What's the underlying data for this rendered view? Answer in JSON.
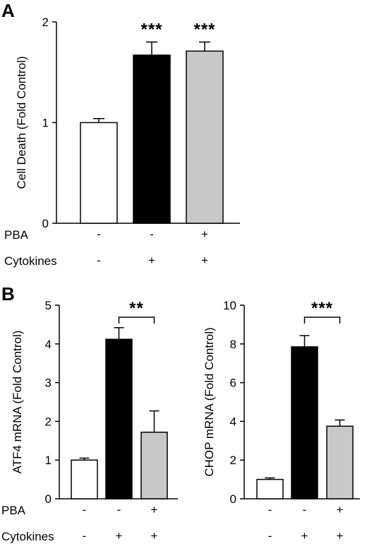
{
  "panels": {
    "A": "A",
    "B": "B"
  },
  "row_labels": {
    "pba": "PBA",
    "cytokines": "Cytokines"
  },
  "chart_data": [
    {
      "type": "bar",
      "panel": "A",
      "ylabel": "Cell Death (Fold Control)",
      "ylim": [
        0,
        2
      ],
      "yticks": [
        0,
        1,
        2
      ],
      "values": [
        1.0,
        1.67,
        1.71
      ],
      "errors": [
        0.04,
        0.13,
        0.09
      ],
      "colors": [
        "#ffffff",
        "#000000",
        "#c8c8c8"
      ],
      "pba": [
        "-",
        "-",
        "+"
      ],
      "cytokines": [
        "-",
        "+",
        "+"
      ],
      "significance": [
        "",
        "***",
        "***"
      ],
      "bracket": null
    },
    {
      "type": "bar",
      "panel": "B",
      "ylabel": "ATF4 mRNA (Fold Control)",
      "ylim": [
        0,
        5
      ],
      "yticks": [
        0,
        1,
        2,
        3,
        4,
        5
      ],
      "values": [
        1.0,
        4.12,
        1.72
      ],
      "errors": [
        0.05,
        0.3,
        0.55
      ],
      "colors": [
        "#ffffff",
        "#000000",
        "#c8c8c8"
      ],
      "pba": [
        "-",
        "-",
        "+"
      ],
      "cytokines": [
        "-",
        "+",
        "+"
      ],
      "significance": [
        "",
        "",
        ""
      ],
      "bracket": {
        "from": 1,
        "to": 2,
        "label": "**"
      }
    },
    {
      "type": "bar",
      "panel": "B",
      "ylabel": "CHOP mRNA (Fold Control)",
      "ylim": [
        0,
        10
      ],
      "yticks": [
        0,
        2,
        4,
        6,
        8,
        10
      ],
      "values": [
        1.0,
        7.85,
        3.75
      ],
      "errors": [
        0.08,
        0.58,
        0.32
      ],
      "colors": [
        "#ffffff",
        "#000000",
        "#c8c8c8"
      ],
      "pba": [
        "-",
        "-",
        "+"
      ],
      "cytokines": [
        "-",
        "+",
        "+"
      ],
      "significance": [
        "",
        "",
        ""
      ],
      "bracket": {
        "from": 1,
        "to": 2,
        "label": "***"
      }
    }
  ]
}
